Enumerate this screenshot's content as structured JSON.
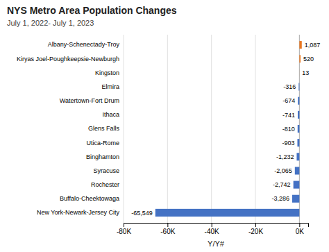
{
  "chart_data": {
    "type": "bar",
    "orientation": "horizontal",
    "title": "NYS Metro Area Population Changes",
    "subtitle": "July 1, 2022- July 1, 2023",
    "xlabel": "Y/Y#",
    "categories": [
      "New York-Newark-Jersey City",
      "Buffalo-Cheektowaga",
      "Rochester",
      "Syracuse",
      "Binghamton",
      "Utica-Rome",
      "Glens Falls",
      "Ithaca",
      "Watertown-Fort Drum",
      "Elmira",
      "Kingston",
      "Kiryas Joel-Poughkeepsie-Newburgh",
      "Albany-Schenectady-Troy"
    ],
    "values": [
      -65549,
      -3286,
      -2742,
      -2065,
      -1232,
      -903,
      -810,
      -741,
      -674,
      -316,
      13,
      520,
      1087
    ],
    "value_labels": [
      "-65,549",
      "-3,286",
      "-2,742",
      "-2,065",
      "-1,232",
      "-903",
      "-810",
      "-741",
      "-674",
      "-316",
      "13",
      "520",
      "1,087"
    ],
    "data_labels": true,
    "colors": [
      "#4472C4",
      "#4472C4",
      "#4472C4",
      "#4472C4",
      "#4472C4",
      "#4472C4",
      "#4472C4",
      "#4472C4",
      "#4472C4",
      "#4472C4",
      "#E87722",
      "#E87722",
      "#E87722"
    ],
    "xlim": [
      -80000,
      4000
    ],
    "xticks": [
      {
        "value": -80000,
        "label": "-80K"
      },
      {
        "value": -60000,
        "label": "-60K"
      },
      {
        "value": -40000,
        "label": "-40K"
      },
      {
        "value": -20000,
        "label": "-20K"
      },
      {
        "value": 0,
        "label": "0K"
      }
    ],
    "grid": true
  }
}
